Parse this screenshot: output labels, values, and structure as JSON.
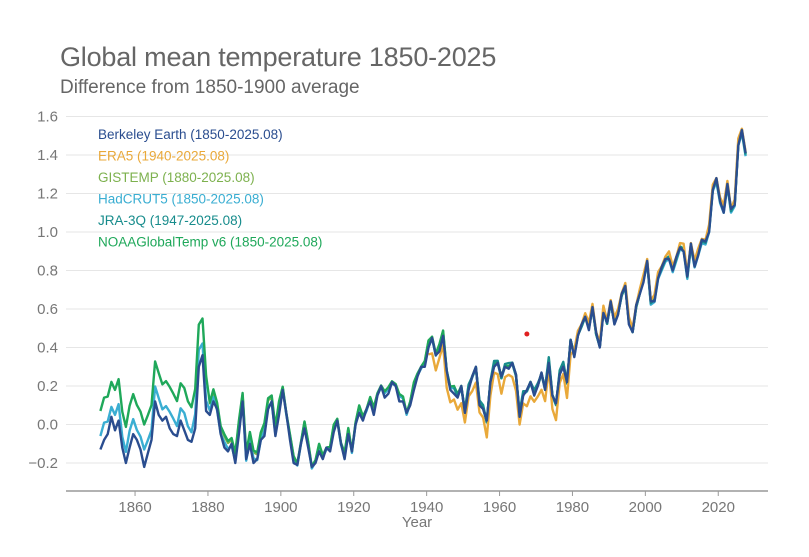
{
  "chart_data": {
    "type": "line",
    "title": "Global mean temperature 1850-2025",
    "subtitle": "Difference from 1850-1900 average",
    "xlabel": "Year",
    "ylabel": "",
    "xlim": [
      1845,
      2038
    ],
    "ylim": [
      -0.32,
      1.7
    ],
    "x_ticks": [
      1860,
      1880,
      1900,
      1920,
      1940,
      1960,
      1980,
      2000,
      2020
    ],
    "x_tick_labels": [
      "1860",
      "1880",
      "1900",
      "1920",
      "1940",
      "1960",
      "1980",
      "2000",
      "2020"
    ],
    "y_ticks": [
      -0.2,
      0.0,
      0.2,
      0.4,
      0.6,
      0.8,
      1.0,
      1.2,
      1.4,
      1.6
    ],
    "y_tick_labels": [
      "−0.2",
      "0.0",
      "0.2",
      "0.4",
      "0.6",
      "0.8",
      "1.0",
      "1.2",
      "1.4",
      "1.6"
    ],
    "grid": "horizontal",
    "legend_position": "top-left",
    "annotation_marker": {
      "x": 1967.5,
      "y": 0.47,
      "color": "#e02020"
    },
    "base_anomaly": {
      "start_year": 1850,
      "values": [
        -0.13,
        -0.08,
        -0.05,
        0.04,
        -0.03,
        0.02,
        -0.12,
        -0.2,
        -0.12,
        -0.05,
        -0.08,
        -0.13,
        -0.22,
        -0.15,
        -0.08,
        0.12,
        0.05,
        0.02,
        0.04,
        -0.02,
        -0.05,
        -0.06,
        0.02,
        -0.03,
        -0.08,
        -0.09,
        -0.02,
        0.3,
        0.36,
        0.07,
        0.05,
        0.12,
        0.08,
        -0.05,
        -0.12,
        -0.14,
        -0.1,
        -0.2,
        -0.05,
        0.12,
        -0.18,
        -0.1,
        -0.2,
        -0.18,
        -0.08,
        -0.06,
        0.08,
        0.12,
        -0.06,
        0.05,
        0.18,
        0.06,
        -0.08,
        -0.2,
        -0.21,
        -0.1,
        -0.02,
        -0.12,
        -0.22,
        -0.2,
        -0.14,
        -0.18,
        -0.12,
        -0.14,
        -0.04,
        0.02,
        -0.1,
        -0.18,
        -0.05,
        -0.14,
        0.0,
        0.06,
        0.02,
        0.08,
        0.12,
        0.05,
        0.15,
        0.2,
        0.14,
        0.16,
        0.22,
        0.2,
        0.12,
        0.12,
        0.06,
        0.1,
        0.18,
        0.25,
        0.3,
        0.3,
        0.4,
        0.45,
        0.36,
        0.38,
        0.46,
        0.28,
        0.18,
        0.16,
        0.14,
        0.2,
        0.06,
        0.18,
        0.25,
        0.3,
        0.1,
        0.08,
        0.02,
        0.22,
        0.3,
        0.32,
        0.25,
        0.3,
        0.29,
        0.32,
        0.26,
        0.04,
        0.15,
        0.18,
        0.22,
        0.15,
        0.2,
        0.27,
        0.18,
        0.32,
        0.15,
        0.11,
        0.26,
        0.3,
        0.22,
        0.44,
        0.35,
        0.46,
        0.52,
        0.56,
        0.49,
        0.61,
        0.48,
        0.4,
        0.58,
        0.53,
        0.64,
        0.52,
        0.57,
        0.68,
        0.72,
        0.52,
        0.48,
        0.62,
        0.68,
        0.74,
        0.85,
        0.64,
        0.64,
        0.76,
        0.82,
        0.86,
        0.86,
        0.8,
        0.87,
        0.92,
        0.9,
        0.77,
        0.94,
        0.82,
        0.88,
        0.96,
        0.95,
        1.0,
        1.22,
        1.28,
        1.16,
        1.1,
        1.25,
        1.12,
        1.14,
        1.45,
        1.53,
        1.41
      ]
    },
    "series": [
      {
        "name": "Berkeley Earth (1850-2025.08)",
        "color": "#2a4d8f",
        "start": 1850,
        "offset_profile": "berkeley"
      },
      {
        "name": "ERA5 (1940-2025.08)",
        "color": "#e9a93a",
        "start": 1940,
        "offset_profile": "era5"
      },
      {
        "name": "GISTEMP (1880-2025.08)",
        "color": "#7db14e",
        "start": 1880,
        "offset_profile": "gistemp"
      },
      {
        "name": "HadCRUT5 (1850-2025.08)",
        "color": "#3aaed2",
        "start": 1850,
        "offset_profile": "hadcrut"
      },
      {
        "name": "JRA-3Q (1947-2025.08)",
        "color": "#178c8c",
        "start": 1947,
        "offset_profile": "jra"
      },
      {
        "name": "NOAAGlobalTemp v6 (1850-2025.08)",
        "color": "#1fa85a",
        "start": 1850,
        "offset_profile": "noaa"
      }
    ]
  }
}
